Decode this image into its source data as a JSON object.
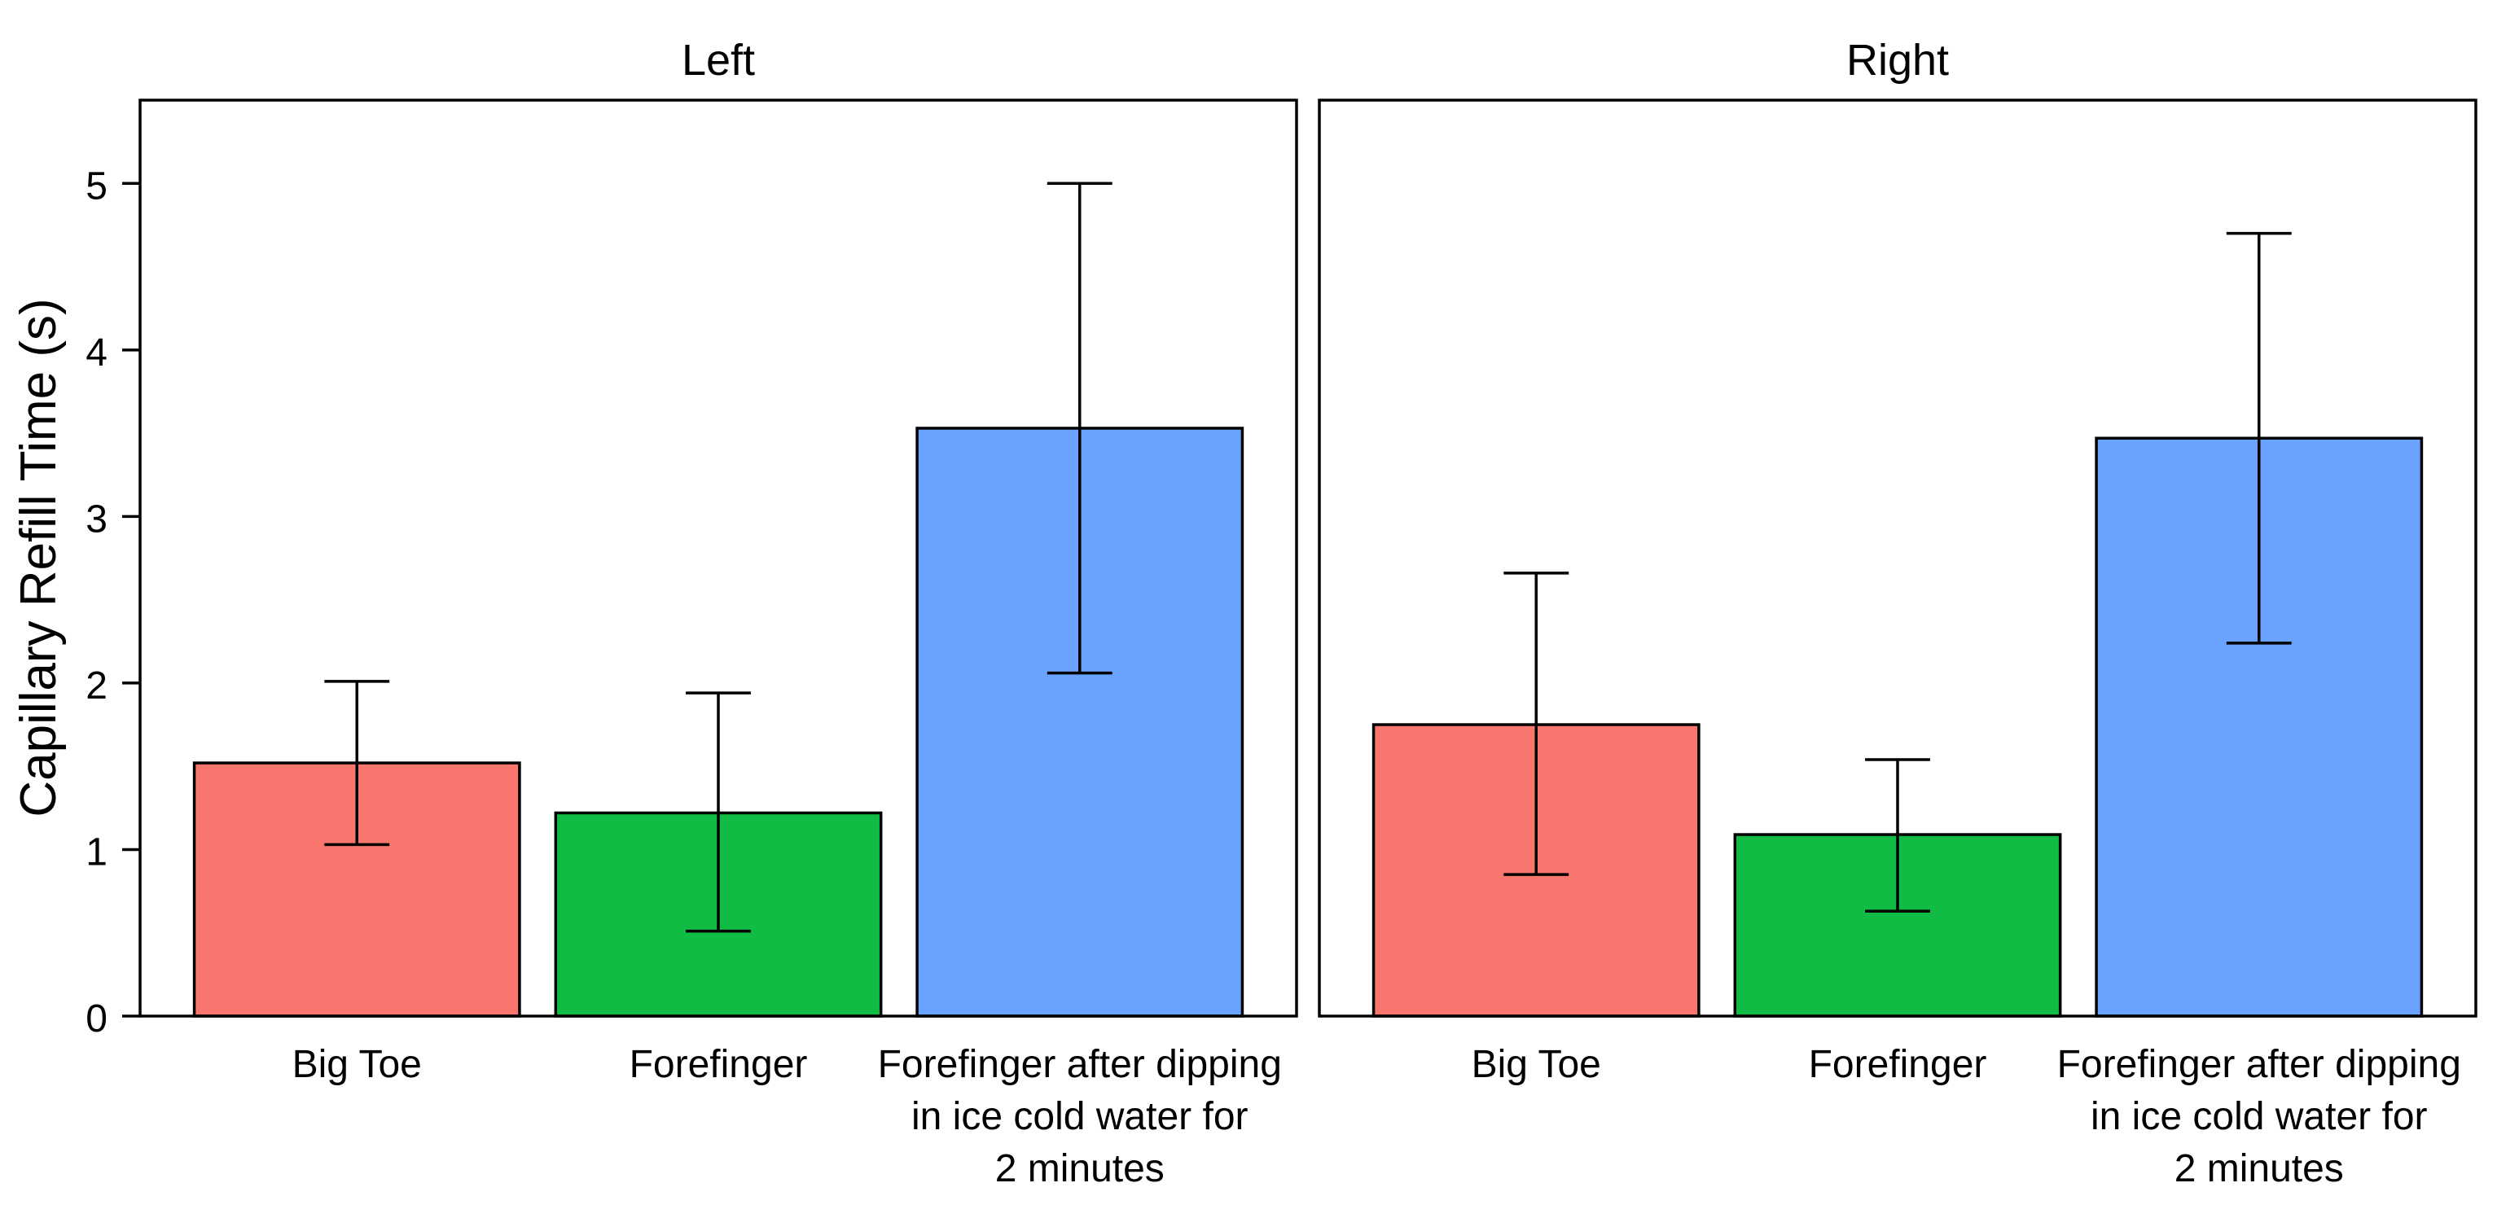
{
  "chart_data": {
    "type": "bar",
    "ylabel": "Capillary Refill Time (s)",
    "ylim": [
      0,
      5.5
    ],
    "yticks": [
      "0",
      "1",
      "2",
      "3",
      "4",
      "5"
    ],
    "categories": [
      [
        "Big Toe"
      ],
      [
        "Forefinger"
      ],
      [
        "Forefinger after dipping",
        "in ice cold water for",
        "2 minutes"
      ]
    ],
    "colors": [
      "#F8766D",
      "#10BC44",
      "#6AA2FF"
    ],
    "grid": false,
    "legend": "none",
    "panels": [
      {
        "title": "Left",
        "values": [
          1.52,
          1.22,
          3.53
        ],
        "error_low": [
          1.03,
          0.51,
          2.06
        ],
        "error_high": [
          2.01,
          1.94,
          5.0
        ]
      },
      {
        "title": "Right",
        "values": [
          1.75,
          1.09,
          3.47
        ],
        "error_low": [
          0.85,
          0.63,
          2.24
        ],
        "error_high": [
          2.66,
          1.54,
          4.7
        ]
      }
    ]
  }
}
